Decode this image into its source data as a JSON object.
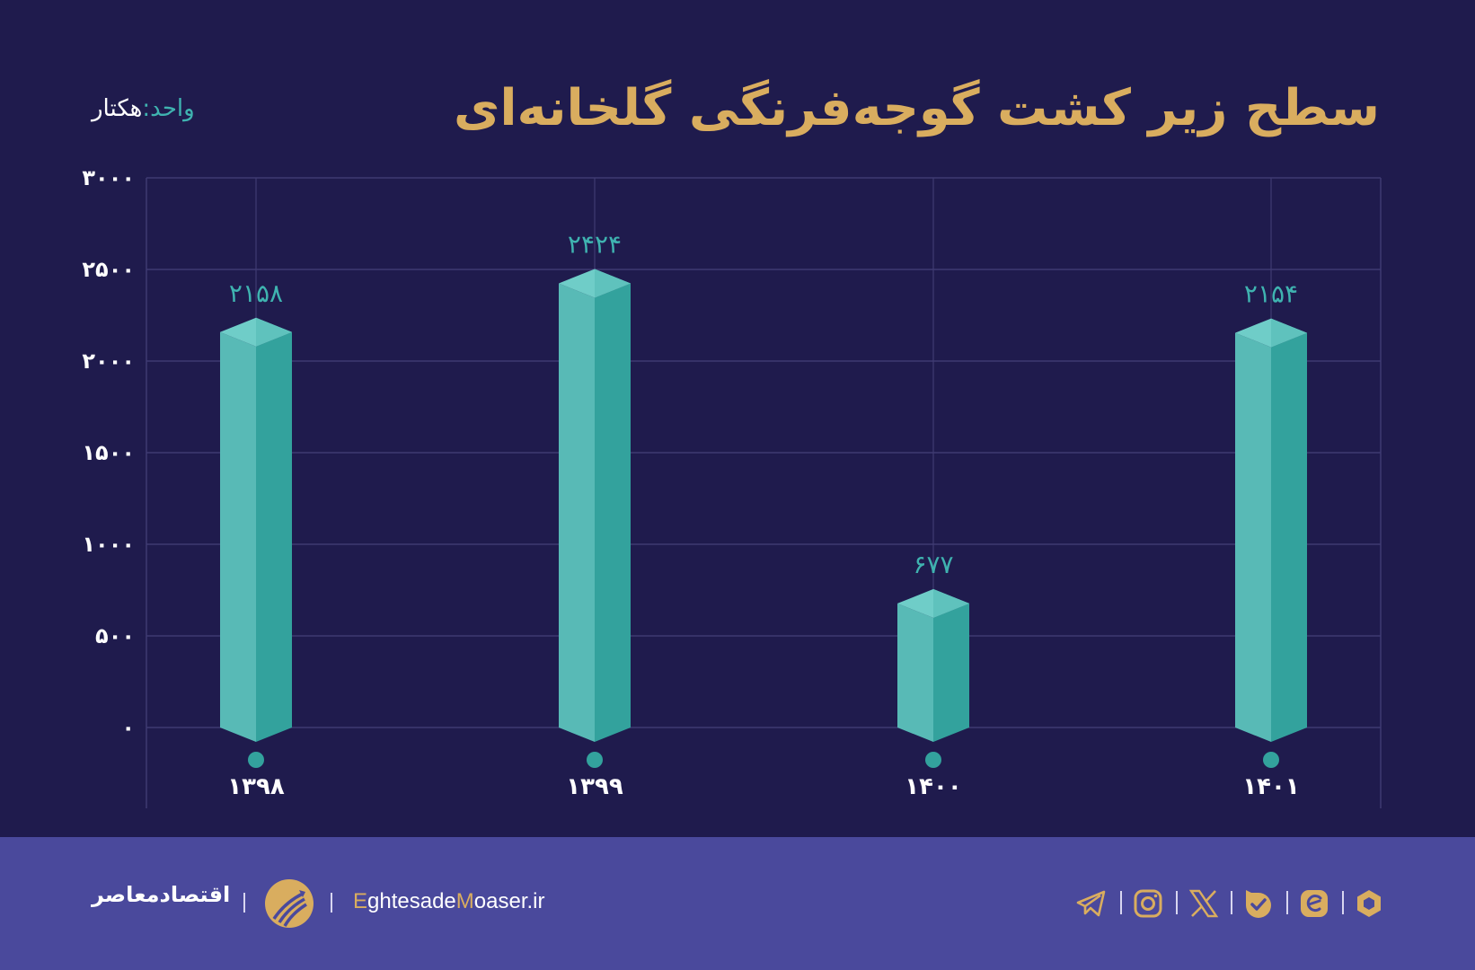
{
  "header": {
    "title": "سطح زیر کشت گوجه‌فرنگی گلخانه‌ای",
    "unit_label": "واحد:",
    "unit_value": "هکتار"
  },
  "chart_data": {
    "type": "bar",
    "title": "سطح زیر کشت گوجه‌فرنگی گلخانه‌ای",
    "xlabel": "",
    "ylabel": "هکتار",
    "categories": [
      "۱۳۹۸",
      "۱۳۹۹",
      "۱۴۰۰",
      "۱۴۰۱"
    ],
    "values": [
      2158,
      2424,
      677,
      2154
    ],
    "value_labels": [
      "۲۱۵۸",
      "۲۴۲۴",
      "۶۷۷",
      "۲۱۵۴"
    ],
    "ylim": [
      0,
      3000
    ],
    "yticks": [
      0,
      500,
      1000,
      1500,
      2000,
      2500,
      3000
    ],
    "ytick_labels": [
      "۰",
      "۵۰۰",
      "۱۰۰۰",
      "۱۵۰۰",
      "۲۰۰۰",
      "۲۵۰۰",
      "۳۰۰۰"
    ],
    "grid": true,
    "legend": "none",
    "colors": {
      "bar_light": "#58bab6",
      "bar_dark": "#33a29d",
      "bar_top": "#6fcdc8",
      "value_label": "#3fb3b0",
      "grid": "#3f3b72",
      "tick_label": "#ffffff"
    }
  },
  "footer": {
    "brand_name": "اقتصادمعاصر",
    "site_prefix_accent": "E",
    "site_part1": "ghtesade",
    "site_mid_accent": "M",
    "site_part2": "oaser.ir",
    "social_icons": [
      "telegram-icon",
      "instagram-icon",
      "x-icon",
      "bale-icon",
      "eitaa-icon",
      "rubika-icon"
    ]
  },
  "colors": {
    "background": "#1f1b4d",
    "footer": "#4a499c",
    "accent_gold": "#d9ad5f",
    "accent_teal": "#3fb3b0"
  }
}
